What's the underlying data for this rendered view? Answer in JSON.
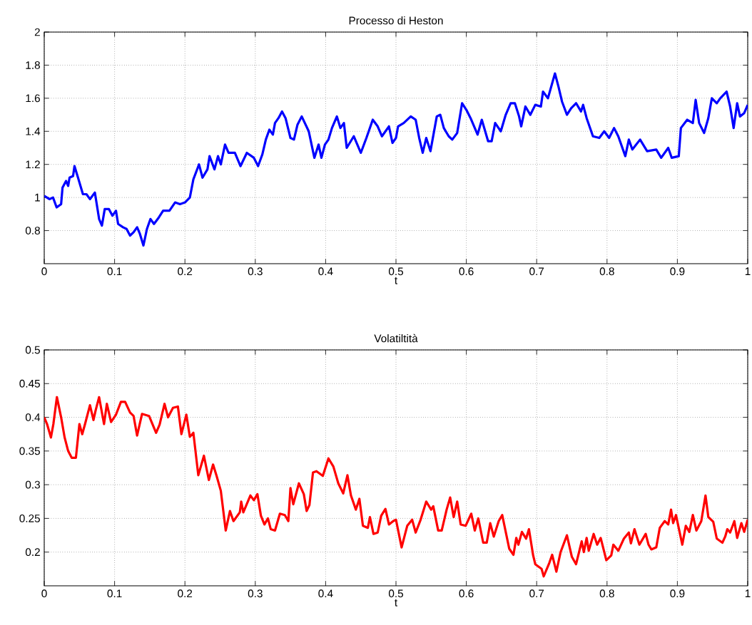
{
  "chart_data": [
    {
      "type": "line",
      "title": "Processo di Heston",
      "xlabel": "t",
      "color": "#0000ff",
      "grid": true,
      "xlim": [
        0,
        1
      ],
      "ylim": [
        0.6,
        2
      ],
      "xticks": [
        0,
        0.1,
        0.2,
        0.3,
        0.4,
        0.5,
        0.6,
        0.7,
        0.8,
        0.9,
        1
      ],
      "yticks": [
        0.8,
        1,
        1.2,
        1.4,
        1.6,
        1.8,
        2
      ],
      "x": [
        0,
        0.0074,
        0.0125,
        0.0176,
        0.024,
        0.026,
        0.031,
        0.034,
        0.036,
        0.041,
        0.043,
        0.048,
        0.055,
        0.06,
        0.065,
        0.072,
        0.078,
        0.082,
        0.086,
        0.092,
        0.097,
        0.102,
        0.105,
        0.112,
        0.117,
        0.122,
        0.127,
        0.132,
        0.136,
        0.141,
        0.146,
        0.151,
        0.156,
        0.163,
        0.169,
        0.178,
        0.186,
        0.193,
        0.2,
        0.207,
        0.212,
        0.22,
        0.225,
        0.232,
        0.235,
        0.242,
        0.247,
        0.251,
        0.257,
        0.262,
        0.271,
        0.279,
        0.288,
        0.298,
        0.304,
        0.31,
        0.315,
        0.32,
        0.325,
        0.328,
        0.333,
        0.338,
        0.343,
        0.35,
        0.355,
        0.36,
        0.366,
        0.376,
        0.384,
        0.39,
        0.394,
        0.399,
        0.404,
        0.409,
        0.416,
        0.421,
        0.426,
        0.43,
        0.44,
        0.45,
        0.458,
        0.467,
        0.474,
        0.48,
        0.49,
        0.495,
        0.5,
        0.503,
        0.511,
        0.521,
        0.528,
        0.533,
        0.538,
        0.543,
        0.549,
        0.558,
        0.563,
        0.568,
        0.575,
        0.58,
        0.587,
        0.594,
        0.6,
        0.606,
        0.616,
        0.622,
        0.631,
        0.636,
        0.641,
        0.649,
        0.656,
        0.663,
        0.669,
        0.675,
        0.678,
        0.684,
        0.691,
        0.698,
        0.706,
        0.709,
        0.716,
        0.726,
        0.731,
        0.736,
        0.743,
        0.749,
        0.756,
        0.763,
        0.766,
        0.771,
        0.78,
        0.789,
        0.796,
        0.803,
        0.81,
        0.816,
        0.826,
        0.831,
        0.836,
        0.847,
        0.857,
        0.87,
        0.877,
        0.887,
        0.892,
        0.902,
        0.905,
        0.914,
        0.922,
        0.926,
        0.931,
        0.938,
        0.944,
        0.949,
        0.956,
        0.961,
        0.97,
        0.975,
        0.98,
        0.985,
        0.989,
        0.995,
        1
      ],
      "values": [
        1.01,
        0.99,
        1.0,
        0.94,
        0.96,
        1.06,
        1.1,
        1.07,
        1.12,
        1.13,
        1.19,
        1.12,
        1.02,
        1.02,
        0.99,
        1.03,
        0.87,
        0.83,
        0.93,
        0.93,
        0.89,
        0.92,
        0.84,
        0.82,
        0.81,
        0.77,
        0.79,
        0.82,
        0.78,
        0.71,
        0.81,
        0.87,
        0.84,
        0.88,
        0.92,
        0.92,
        0.97,
        0.96,
        0.97,
        1.0,
        1.11,
        1.2,
        1.12,
        1.17,
        1.25,
        1.17,
        1.25,
        1.2,
        1.32,
        1.27,
        1.27,
        1.19,
        1.27,
        1.24,
        1.19,
        1.26,
        1.35,
        1.41,
        1.38,
        1.45,
        1.48,
        1.52,
        1.48,
        1.36,
        1.35,
        1.44,
        1.49,
        1.4,
        1.24,
        1.32,
        1.24,
        1.32,
        1.35,
        1.42,
        1.49,
        1.42,
        1.45,
        1.3,
        1.37,
        1.27,
        1.36,
        1.47,
        1.43,
        1.37,
        1.43,
        1.33,
        1.36,
        1.43,
        1.45,
        1.49,
        1.47,
        1.36,
        1.27,
        1.36,
        1.28,
        1.49,
        1.5,
        1.42,
        1.37,
        1.35,
        1.39,
        1.57,
        1.53,
        1.48,
        1.38,
        1.47,
        1.34,
        1.34,
        1.45,
        1.4,
        1.5,
        1.57,
        1.57,
        1.49,
        1.43,
        1.55,
        1.5,
        1.56,
        1.55,
        1.64,
        1.6,
        1.75,
        1.67,
        1.58,
        1.5,
        1.54,
        1.57,
        1.52,
        1.56,
        1.48,
        1.37,
        1.36,
        1.4,
        1.36,
        1.42,
        1.37,
        1.25,
        1.35,
        1.29,
        1.35,
        1.28,
        1.29,
        1.24,
        1.3,
        1.24,
        1.25,
        1.42,
        1.47,
        1.45,
        1.59,
        1.45,
        1.39,
        1.48,
        1.6,
        1.57,
        1.6,
        1.64,
        1.55,
        1.42,
        1.57,
        1.49,
        1.51,
        1.56
      ]
    },
    {
      "type": "line",
      "title": "Volatiltità",
      "xlabel": "t",
      "color": "#ff0000",
      "grid": true,
      "xlim": [
        0,
        1
      ],
      "ylim": [
        0.15,
        0.5
      ],
      "xticks": [
        0,
        0.1,
        0.2,
        0.3,
        0.4,
        0.5,
        0.6,
        0.7,
        0.8,
        0.9,
        1
      ],
      "yticks": [
        0.2,
        0.25,
        0.3,
        0.35,
        0.4,
        0.45,
        0.5
      ],
      "x": [
        0,
        0.004,
        0.0095,
        0.013,
        0.018,
        0.024,
        0.029,
        0.034,
        0.039,
        0.045,
        0.05,
        0.054,
        0.058,
        0.065,
        0.07,
        0.073,
        0.078,
        0.085,
        0.089,
        0.095,
        0.102,
        0.109,
        0.115,
        0.122,
        0.127,
        0.132,
        0.139,
        0.149,
        0.159,
        0.164,
        0.171,
        0.176,
        0.183,
        0.19,
        0.195,
        0.202,
        0.207,
        0.212,
        0.219,
        0.227,
        0.234,
        0.24,
        0.245,
        0.251,
        0.258,
        0.264,
        0.269,
        0.278,
        0.28,
        0.283,
        0.293,
        0.298,
        0.303,
        0.308,
        0.313,
        0.318,
        0.322,
        0.328,
        0.335,
        0.342,
        0.347,
        0.35,
        0.354,
        0.362,
        0.369,
        0.373,
        0.377,
        0.382,
        0.387,
        0.396,
        0.404,
        0.411,
        0.418,
        0.425,
        0.431,
        0.436,
        0.443,
        0.448,
        0.453,
        0.46,
        0.463,
        0.468,
        0.474,
        0.479,
        0.485,
        0.49,
        0.496,
        0.5,
        0.508,
        0.513,
        0.516,
        0.523,
        0.528,
        0.535,
        0.543,
        0.55,
        0.553,
        0.56,
        0.565,
        0.572,
        0.577,
        0.582,
        0.587,
        0.592,
        0.599,
        0.607,
        0.612,
        0.617,
        0.624,
        0.629,
        0.634,
        0.639,
        0.646,
        0.651,
        0.661,
        0.667,
        0.671,
        0.674,
        0.679,
        0.685,
        0.689,
        0.695,
        0.698,
        0.707,
        0.71,
        0.718,
        0.722,
        0.728,
        0.734,
        0.743,
        0.75,
        0.756,
        0.764,
        0.767,
        0.771,
        0.774,
        0.781,
        0.786,
        0.791,
        0.799,
        0.806,
        0.809,
        0.816,
        0.824,
        0.831,
        0.834,
        0.839,
        0.846,
        0.855,
        0.859,
        0.863,
        0.87,
        0.875,
        0.882,
        0.887,
        0.891,
        0.894,
        0.898,
        0.907,
        0.912,
        0.917,
        0.922,
        0.927,
        0.934,
        0.94,
        0.944,
        0.951,
        0.956,
        0.964,
        0.968,
        0.971,
        0.975,
        0.981,
        0.985,
        0.991,
        0.995,
        1
      ],
      "values": [
        0.4,
        0.39,
        0.37,
        0.39,
        0.43,
        0.4,
        0.37,
        0.35,
        0.34,
        0.34,
        0.39,
        0.375,
        0.39,
        0.418,
        0.396,
        0.41,
        0.43,
        0.39,
        0.42,
        0.393,
        0.404,
        0.423,
        0.423,
        0.407,
        0.402,
        0.373,
        0.405,
        0.402,
        0.377,
        0.389,
        0.42,
        0.4,
        0.414,
        0.416,
        0.375,
        0.404,
        0.371,
        0.377,
        0.314,
        0.343,
        0.307,
        0.33,
        0.313,
        0.291,
        0.232,
        0.261,
        0.246,
        0.259,
        0.275,
        0.259,
        0.284,
        0.277,
        0.286,
        0.254,
        0.241,
        0.25,
        0.234,
        0.232,
        0.257,
        0.255,
        0.246,
        0.295,
        0.271,
        0.302,
        0.286,
        0.261,
        0.27,
        0.318,
        0.32,
        0.313,
        0.339,
        0.327,
        0.302,
        0.287,
        0.314,
        0.284,
        0.263,
        0.279,
        0.239,
        0.236,
        0.252,
        0.227,
        0.229,
        0.254,
        0.264,
        0.241,
        0.246,
        0.248,
        0.207,
        0.227,
        0.239,
        0.248,
        0.229,
        0.248,
        0.275,
        0.263,
        0.268,
        0.232,
        0.232,
        0.263,
        0.281,
        0.252,
        0.275,
        0.241,
        0.239,
        0.257,
        0.232,
        0.25,
        0.214,
        0.214,
        0.243,
        0.223,
        0.246,
        0.255,
        0.205,
        0.196,
        0.221,
        0.211,
        0.23,
        0.22,
        0.234,
        0.195,
        0.182,
        0.175,
        0.164,
        0.184,
        0.196,
        0.171,
        0.2,
        0.225,
        0.193,
        0.182,
        0.216,
        0.2,
        0.221,
        0.202,
        0.227,
        0.211,
        0.221,
        0.188,
        0.195,
        0.211,
        0.202,
        0.22,
        0.229,
        0.213,
        0.234,
        0.211,
        0.227,
        0.211,
        0.204,
        0.207,
        0.236,
        0.246,
        0.241,
        0.263,
        0.243,
        0.255,
        0.211,
        0.239,
        0.23,
        0.255,
        0.232,
        0.246,
        0.284,
        0.252,
        0.245,
        0.22,
        0.214,
        0.223,
        0.234,
        0.229,
        0.246,
        0.221,
        0.243,
        0.23,
        0.248
      ]
    }
  ]
}
